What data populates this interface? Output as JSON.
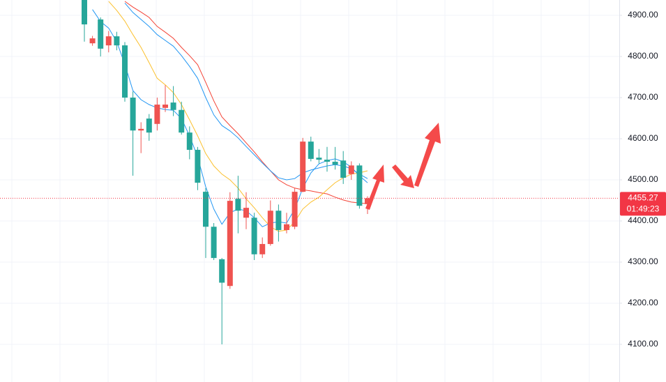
{
  "chart_data": {
    "type": "candlestick",
    "up_color": "#ef5350",
    "down_color": "#26a69a",
    "open": [
      4945,
      4832,
      4890,
      4827,
      4849,
      4827,
      4700,
      4620,
      4649,
      4636,
      4675,
      4688,
      4670,
      4615,
      4573,
      4471,
      4386,
      4307,
      4242,
      4454,
      4408,
      4408,
      4319,
      4344,
      4425,
      4378,
      4386,
      4471,
      4593,
      4554,
      4549,
      4544,
      4547,
      4514,
      4535,
      4441
    ],
    "high": [
      4960,
      4850,
      4895,
      4862,
      4860,
      4835,
      4715,
      4640,
      4660,
      4700,
      4730,
      4728,
      4690,
      4630,
      4580,
      4480,
      4395,
      4310,
      4470,
      4510,
      4470,
      4420,
      4360,
      4450,
      4440,
      4420,
      4480,
      4602,
      4605,
      4575,
      4580,
      4580,
      4570,
      4545,
      4540,
      4460
    ],
    "low": [
      4836,
      4826,
      4800,
      4810,
      4815,
      4690,
      4510,
      4565,
      4595,
      4620,
      4665,
      4655,
      4610,
      4550,
      4475,
      4310,
      4305,
      4100,
      4235,
      4370,
      4380,
      4305,
      4310,
      4340,
      4350,
      4370,
      4380,
      4470,
      4545,
      4540,
      4520,
      4525,
      4490,
      4500,
      4430,
      4417
    ],
    "close": [
      4878,
      4844,
      4819,
      4849,
      4827,
      4700,
      4620,
      4624,
      4615,
      4683,
      4683,
      4670,
      4615,
      4573,
      4493,
      4386,
      4310,
      4250,
      4449,
      4425,
      4432,
      4319,
      4344,
      4425,
      4378,
      4392,
      4471,
      4593,
      4551,
      4549,
      4544,
      4537,
      4505,
      4535,
      4437,
      4455.27
    ],
    "series": [
      {
        "color": "#f44336",
        "values": [
          null,
          null,
          null,
          null,
          null,
          4934,
          4920,
          4908,
          4895,
          4873,
          4859,
          4844,
          4822,
          4802,
          4780,
          4737,
          4692,
          4653,
          4632,
          4612,
          4590,
          4568,
          4544,
          4522,
          4500,
          4488,
          4480,
          4476,
          4473,
          4469,
          4466,
          4458,
          4451,
          4446,
          4444,
          4442
        ]
      },
      {
        "color": "#2196f3",
        "values": [
          null,
          null,
          null,
          null,
          null,
          4930,
          4907,
          4890,
          4873,
          4853,
          4839,
          4825,
          4802,
          4776,
          4747,
          4700,
          4658,
          4632,
          4619,
          4602,
          4581,
          4561,
          4541,
          4522,
          4505,
          4500,
          4503,
          4517,
          4524,
          4529,
          4534,
          4537,
          4534,
          4527,
          4514,
          4503
        ]
      },
      {
        "color": "#fbc02d",
        "values": [
          null,
          null,
          null,
          4934,
          4912,
          4886,
          4853,
          4822,
          4785,
          4747,
          4731,
          4712,
          4683,
          4646,
          4607,
          4564,
          4534,
          4514,
          4500,
          4480,
          4454,
          4432,
          4408,
          4386,
          4375,
          4378,
          4398,
          4429,
          4446,
          4458,
          4476,
          4493,
          4505,
          4514,
          4517,
          4522
        ]
      },
      {
        "color": "#2196f3",
        "values": [
          null,
          4914,
          4885,
          4869,
          4836,
          4781,
          4717,
          4695,
          4683,
          4675,
          4671,
          4669,
          4649,
          4607,
          4556,
          4483,
          4429,
          4392,
          4420,
          4429,
          4425,
          4408,
          4386,
          4395,
          4398,
          4395,
          4429,
          4480,
          4517,
          4539,
          4547,
          4551,
          4544,
          4531,
          4510,
          4493
        ]
      }
    ],
    "ylim": [
      4008.5,
      4937.3
    ],
    "yticks": [
      {
        "value": 4100,
        "label": "4100.00"
      },
      {
        "value": 4200,
        "label": "4200.00"
      },
      {
        "value": 4300,
        "label": "4300.00"
      },
      {
        "value": 4400,
        "label": "4400.00"
      },
      {
        "value": 4500,
        "label": "4500.00"
      },
      {
        "value": 4600,
        "label": "4600.00"
      },
      {
        "value": 4700,
        "label": "4700.00"
      },
      {
        "value": 4800,
        "label": "4800.00"
      },
      {
        "value": 4900,
        "label": "4900.00"
      }
    ],
    "grid": true,
    "last_price": {
      "value": 4455.27,
      "label": "4455.27",
      "countdown": "01:49:23",
      "color": "#f23645"
    }
  }
}
